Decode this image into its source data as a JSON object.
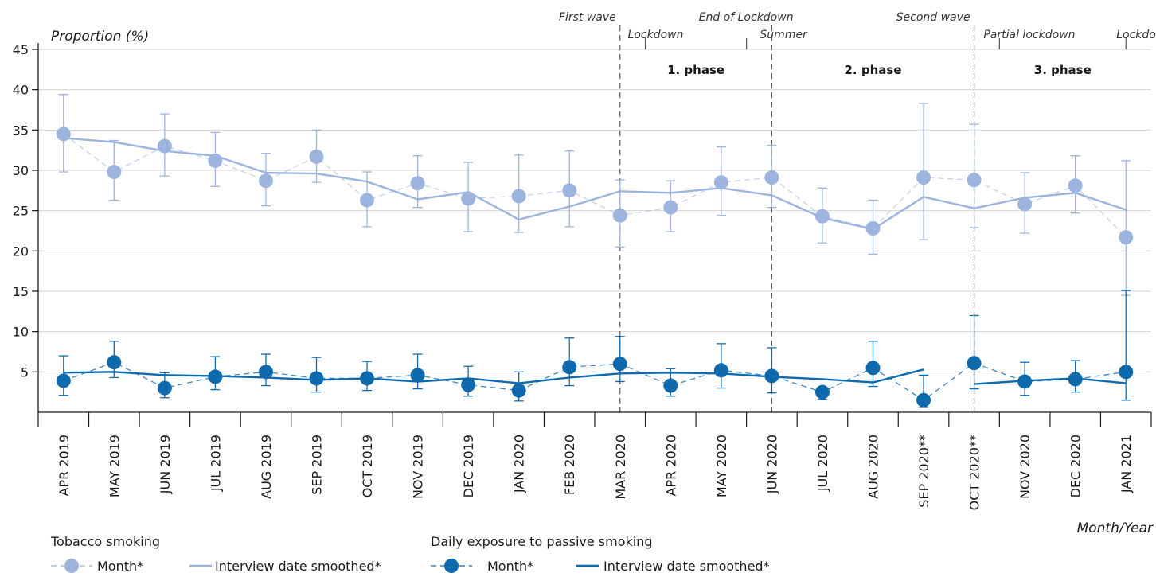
{
  "chart_data": {
    "type": "line",
    "ylabel": "Proportion (%)",
    "xlabel": "Month/Year",
    "ylim": [
      0,
      45
    ],
    "yticks": [
      5,
      10,
      15,
      20,
      25,
      30,
      35,
      40,
      45
    ],
    "grid": "horizontal",
    "categories": [
      "APR 2019",
      "MAY 2019",
      "JUN 2019",
      "JUL 2019",
      "AUG 2019",
      "SEP 2019",
      "OCT 2019",
      "NOV 2019",
      "DEC 2019",
      "JAN 2020",
      "FEB 2020",
      "MAR 2020",
      "APR 2020",
      "MAY 2020",
      "JUN 2020",
      "JUL 2020",
      "AUG 2020",
      "SEP 2020**",
      "OCT 2020**",
      "NOV 2020",
      "DEC 2020",
      "JAN 2021"
    ],
    "groups": [
      {
        "label": "Tobacco smoking",
        "color": "#9db4de",
        "month_label": "Month*",
        "smoothed_label": "Interview date smoothed*",
        "month": [
          34.5,
          29.8,
          33.0,
          31.2,
          28.7,
          31.7,
          26.3,
          28.4,
          26.5,
          26.8,
          27.5,
          24.4,
          25.4,
          28.5,
          29.1,
          24.3,
          22.8,
          29.1,
          28.8,
          25.8,
          28.1,
          21.7
        ],
        "ci_low": [
          29.8,
          26.3,
          29.3,
          28.0,
          25.6,
          28.5,
          23.0,
          25.4,
          22.4,
          22.3,
          23.0,
          20.5,
          22.4,
          24.4,
          25.4,
          21.0,
          19.6,
          21.4,
          22.9,
          22.2,
          24.7,
          14.5
        ],
        "ci_high": [
          39.4,
          33.7,
          37.0,
          34.7,
          32.1,
          35.0,
          29.8,
          31.8,
          31.0,
          31.9,
          32.4,
          28.8,
          28.7,
          32.9,
          33.1,
          27.8,
          26.3,
          38.3,
          35.7,
          29.7,
          31.8,
          31.2
        ],
        "smoothed": [
          34.0,
          33.5,
          32.4,
          31.8,
          29.7,
          29.6,
          28.6,
          26.4,
          27.3,
          23.9,
          25.5,
          27.4,
          27.2,
          27.8,
          26.9,
          24.1,
          22.7,
          26.7,
          25.3,
          26.6,
          27.2,
          25.1
        ]
      },
      {
        "label": "Daily exposure to passive smoking",
        "color": "#0e6aad",
        "month_label": "Month*",
        "smoothed_label": "Interview date smoothed*",
        "month": [
          3.9,
          6.2,
          3.0,
          4.4,
          5.0,
          4.2,
          4.2,
          4.6,
          3.4,
          2.7,
          5.6,
          6.0,
          3.3,
          5.2,
          4.5,
          2.5,
          5.5,
          1.5,
          6.1,
          3.8,
          4.1,
          5.0
        ],
        "ci_low": [
          2.1,
          4.3,
          1.8,
          2.8,
          3.3,
          2.5,
          2.7,
          2.9,
          2.0,
          1.4,
          3.3,
          3.8,
          2.0,
          3.0,
          2.4,
          1.6,
          3.2,
          0.6,
          2.9,
          2.1,
          2.5,
          1.5
        ],
        "ci_high": [
          7.0,
          8.8,
          4.9,
          6.9,
          7.2,
          6.8,
          6.3,
          7.2,
          5.7,
          5.0,
          9.2,
          9.4,
          5.4,
          8.5,
          8.0,
          2.6,
          8.8,
          4.6,
          12.0,
          6.2,
          6.4,
          15.1
        ],
        "smoothed": [
          4.9,
          5.0,
          4.6,
          4.5,
          4.3,
          4.0,
          4.2,
          3.8,
          4.2,
          3.6,
          4.3,
          4.8,
          4.9,
          4.8,
          4.4,
          4.1,
          3.7,
          5.3,
          3.5,
          3.9,
          4.2,
          3.6
        ],
        "smoothed_break_after": 17
      }
    ],
    "events": [
      {
        "label": "First wave",
        "index": 11,
        "line": "dashed",
        "row": 0
      },
      {
        "label": "Lockdown",
        "index": 11.5,
        "line": "short",
        "row": 1
      },
      {
        "label": "End of Lockdown",
        "index": 13.5,
        "line": "short",
        "row": 0
      },
      {
        "label": "Summer",
        "index": 14,
        "line": "dashed",
        "row": 1
      },
      {
        "label": "Second wave",
        "index": 18,
        "line": "dashed",
        "row": 0
      },
      {
        "label": "Partial lockdown",
        "index": 18.5,
        "line": "short",
        "row": 1
      },
      {
        "label": "Lockdown",
        "index": 21,
        "line": "short",
        "row": 1
      }
    ],
    "phases": [
      {
        "label": "1. phase",
        "start": 11,
        "end": 14
      },
      {
        "label": "2. phase",
        "start": 14,
        "end": 18
      },
      {
        "label": "3. phase",
        "start": 18,
        "end": 21.5
      }
    ]
  }
}
